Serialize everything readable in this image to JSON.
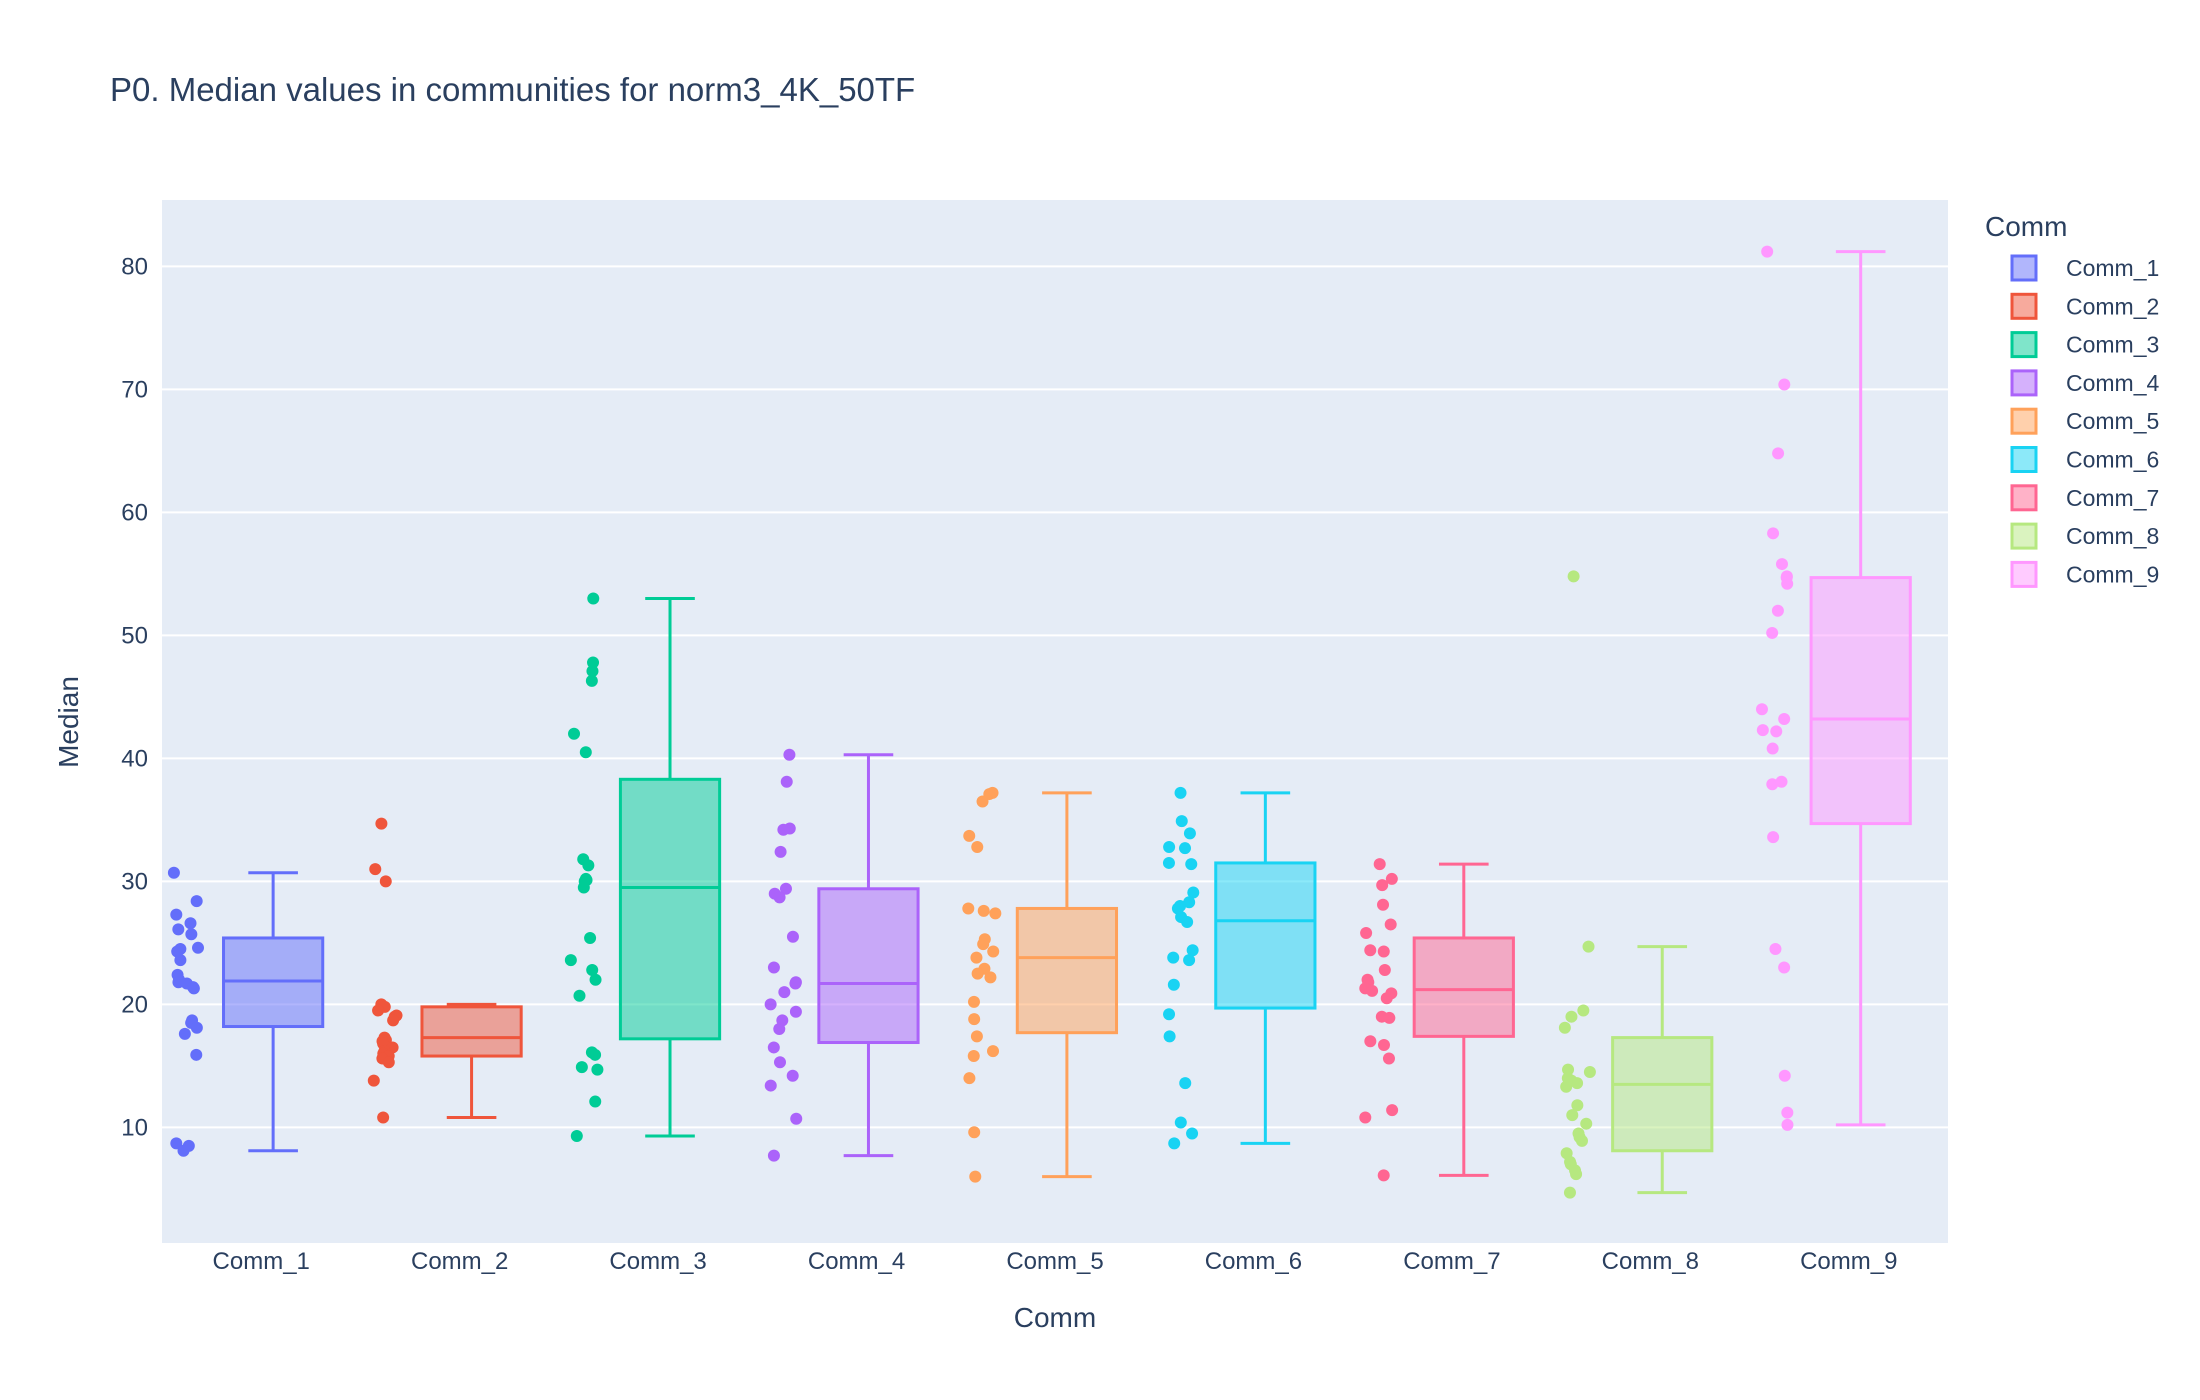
{
  "chart_data": {
    "type": "box",
    "title": "P0. Median values in communities for norm3_4K_50TF",
    "xlabel": "Comm",
    "ylabel": "Median",
    "ylim": [
      0.6,
      85.4
    ],
    "yticks": [
      10,
      20,
      30,
      40,
      50,
      60,
      70,
      80
    ],
    "grid": true,
    "legend_title": "Comm",
    "legend_position": "right",
    "categories": [
      "Comm_1",
      "Comm_2",
      "Comm_3",
      "Comm_4",
      "Comm_5",
      "Comm_6",
      "Comm_7",
      "Comm_8",
      "Comm_9"
    ],
    "series": [
      {
        "name": "Comm_1",
        "color": "#636efa",
        "min": 8.1,
        "q1": 18.2,
        "median": 21.9,
        "q3": 25.4,
        "max": 30.7,
        "points": [
          30.7,
          28.4,
          27.3,
          26.6,
          26.1,
          25.7,
          24.6,
          24.5,
          24.3,
          23.6,
          22.4,
          22.0,
          21.8,
          21.7,
          21.4,
          21.3,
          18.7,
          18.5,
          18.1,
          17.6,
          15.9,
          8.7,
          8.5,
          8.1
        ]
      },
      {
        "name": "Comm_2",
        "color": "#ef553b",
        "min": 10.8,
        "q1": 15.8,
        "median": 17.3,
        "q3": 19.8,
        "max": 20.0,
        "points": [
          34.7,
          31.0,
          30.0,
          20.0,
          19.8,
          19.5,
          19.1,
          19.0,
          18.7,
          17.3,
          17.1,
          17.0,
          16.8,
          16.5,
          16.2,
          16.0,
          15.8,
          15.6,
          15.3,
          13.8,
          10.8
        ]
      },
      {
        "name": "Comm_3",
        "color": "#00cc96",
        "min": 9.3,
        "q1": 17.2,
        "median": 29.5,
        "q3": 38.3,
        "max": 53.0,
        "points": [
          53.0,
          47.8,
          47.1,
          46.3,
          42.0,
          40.5,
          31.8,
          31.3,
          30.2,
          30.0,
          30.1,
          29.5,
          25.4,
          23.6,
          22.8,
          22.0,
          20.7,
          16.1,
          15.9,
          14.9,
          14.7,
          12.1,
          9.3
        ]
      },
      {
        "name": "Comm_4",
        "color": "#ab63fa",
        "min": 7.7,
        "q1": 16.9,
        "median": 21.7,
        "q3": 29.4,
        "max": 40.3,
        "points": [
          40.3,
          38.1,
          34.3,
          34.2,
          32.4,
          29.4,
          29.0,
          28.7,
          25.5,
          23.0,
          21.8,
          21.7,
          21.0,
          20.0,
          19.4,
          18.7,
          18.0,
          16.5,
          15.3,
          14.2,
          13.4,
          10.7,
          7.7
        ]
      },
      {
        "name": "Comm_5",
        "color": "#ffa15a",
        "min": 6.0,
        "q1": 17.7,
        "median": 23.8,
        "q3": 27.8,
        "max": 37.2,
        "points": [
          37.2,
          37.1,
          36.5,
          33.7,
          32.8,
          27.8,
          27.6,
          27.4,
          25.3,
          24.9,
          24.3,
          23.8,
          22.9,
          22.5,
          22.2,
          20.2,
          18.8,
          17.4,
          16.2,
          15.8,
          14.0,
          9.6,
          6.0
        ]
      },
      {
        "name": "Comm_6",
        "color": "#19d3f3",
        "min": 8.7,
        "q1": 19.7,
        "median": 26.8,
        "q3": 31.5,
        "max": 37.2,
        "points": [
          37.2,
          34.9,
          33.9,
          32.8,
          32.7,
          31.5,
          31.4,
          29.1,
          28.3,
          28.0,
          27.8,
          27.1,
          26.7,
          24.4,
          23.8,
          23.6,
          21.6,
          19.2,
          17.4,
          13.6,
          10.4,
          9.5,
          8.7
        ]
      },
      {
        "name": "Comm_7",
        "color": "#ff6692",
        "min": 6.1,
        "q1": 17.4,
        "median": 21.2,
        "q3": 25.4,
        "max": 31.4,
        "points": [
          31.4,
          30.2,
          29.7,
          28.1,
          26.5,
          25.8,
          24.4,
          24.3,
          22.8,
          22.0,
          21.8,
          21.3,
          21.1,
          20.9,
          20.5,
          19.0,
          18.9,
          17.0,
          16.7,
          15.6,
          11.4,
          10.8,
          6.1
        ]
      },
      {
        "name": "Comm_8",
        "color": "#b6e880",
        "min": 4.7,
        "q1": 8.1,
        "median": 13.5,
        "q3": 17.3,
        "max": 24.7,
        "points": [
          54.8,
          24.7,
          19.5,
          19.0,
          18.1,
          14.7,
          14.5,
          14.0,
          13.8,
          13.6,
          13.3,
          11.8,
          11.0,
          10.3,
          9.5,
          9.2,
          8.9,
          7.9,
          7.2,
          7.0,
          6.5,
          6.2,
          4.7
        ]
      },
      {
        "name": "Comm_9",
        "color": "#ff97ff",
        "min": 10.2,
        "q1": 34.7,
        "median": 43.2,
        "q3": 54.7,
        "max": 81.2,
        "points": [
          81.2,
          70.4,
          64.8,
          58.3,
          55.8,
          54.8,
          54.7,
          54.2,
          52.0,
          50.2,
          44.0,
          43.2,
          42.3,
          42.2,
          40.8,
          38.1,
          37.9,
          33.6,
          24.5,
          23.0,
          14.2,
          11.2,
          10.2
        ]
      }
    ]
  }
}
